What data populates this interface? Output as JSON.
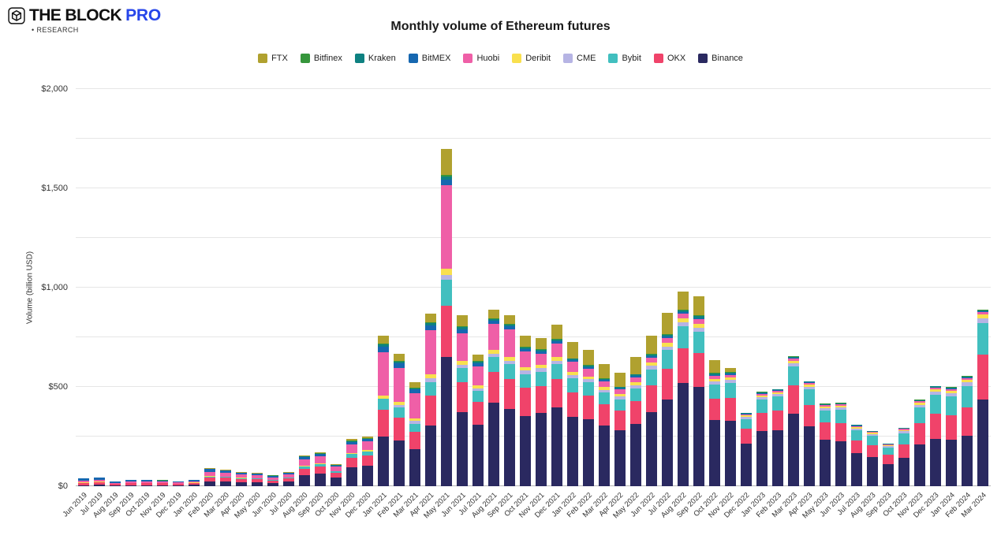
{
  "brand": {
    "name": "THE BLOCK",
    "pro": "PRO",
    "sub": "• RESEARCH"
  },
  "chart_data": {
    "type": "bar",
    "stacked": true,
    "title": "Monthly volume of Ethereum futures",
    "ylabel": "Volume (billion USD)",
    "ylim": [
      0,
      2000
    ],
    "ytick_step": 250,
    "ytick_values": [
      0,
      500,
      1000,
      1500,
      2000
    ],
    "ytick_labels": [
      "$0",
      "$500",
      "$1,000",
      "$1,500",
      "$2,000"
    ],
    "grid": true,
    "legend_position": "top",
    "categories": [
      "Jun 2019",
      "Jul 2019",
      "Aug 2019",
      "Sep 2019",
      "Oct 2019",
      "Nov 2019",
      "Dec 2019",
      "Jan 2020",
      "Feb 2020",
      "Mar 2020",
      "Apr 2020",
      "May 2020",
      "Jun 2020",
      "Jul 2020",
      "Aug 2020",
      "Sep 2020",
      "Oct 2020",
      "Nov 2020",
      "Dec 2020",
      "Jan 2021",
      "Feb 2021",
      "Mar 2021",
      "Apr 2021",
      "May 2021",
      "Jun 2021",
      "Jul 2021",
      "Aug 2021",
      "Sep 2021",
      "Oct 2021",
      "Nov 2021",
      "Dec 2021",
      "Jan 2022",
      "Feb 2022",
      "Mar 2022",
      "Apr 2022",
      "May 2022",
      "Jun 2022",
      "Jul 2022",
      "Aug 2022",
      "Sep 2022",
      "Oct 2022",
      "Nov 2022",
      "Dec 2022",
      "Jan 2023",
      "Feb 2023",
      "Mar 2023",
      "Apr 2023",
      "May 2023",
      "Jun 2023",
      "Jul 2023",
      "Aug 2023",
      "Sep 2023",
      "Oct 2023",
      "Nov 2023",
      "Dec 2023",
      "Jan 2024",
      "Feb 2024",
      "Mar 2024"
    ],
    "stack_order_bottom_to_top": [
      "Binance",
      "OKX",
      "Bybit",
      "CME",
      "Deribit",
      "Huobi",
      "BitMEX",
      "Kraken",
      "Bitfinex",
      "FTX"
    ],
    "series": [
      {
        "name": "FTX",
        "color": "#b0a12f",
        "values": [
          0,
          0,
          0,
          0,
          0,
          0,
          0,
          0,
          2,
          2,
          2,
          2,
          2,
          2,
          5,
          5,
          4,
          8,
          9,
          42,
          32,
          28,
          45,
          132,
          55,
          35,
          45,
          45,
          57,
          56,
          72,
          80,
          75,
          70,
          68,
          85,
          95,
          110,
          90,
          95,
          65,
          20,
          0,
          0,
          0,
          0,
          0,
          0,
          0,
          0,
          0,
          0,
          0,
          0,
          0,
          0,
          0,
          0
        ]
      },
      {
        "name": "Bitfinex",
        "color": "#36963c",
        "values": [
          1,
          1,
          0,
          1,
          1,
          1,
          0,
          0,
          1,
          1,
          1,
          1,
          1,
          1,
          1,
          2,
          1,
          2,
          2,
          5,
          4,
          3,
          5,
          8,
          5,
          4,
          4,
          4,
          4,
          4,
          4,
          3,
          3,
          3,
          3,
          3,
          3,
          4,
          4,
          4,
          3,
          3,
          2,
          2,
          2,
          3,
          2,
          2,
          2,
          2,
          1,
          1,
          2,
          2,
          2,
          2,
          2,
          3
        ]
      },
      {
        "name": "Kraken",
        "color": "#0e8181",
        "values": [
          1,
          1,
          0,
          0,
          0,
          0,
          0,
          0,
          1,
          1,
          1,
          1,
          1,
          1,
          2,
          2,
          1,
          3,
          3,
          10,
          9,
          7,
          11,
          15,
          9,
          7,
          9,
          8,
          8,
          8,
          8,
          7,
          7,
          6,
          5,
          6,
          7,
          8,
          9,
          9,
          6,
          6,
          4,
          4,
          4,
          6,
          5,
          4,
          4,
          3,
          3,
          2,
          3,
          4,
          5,
          5,
          5,
          7
        ]
      },
      {
        "name": "BitMEX",
        "color": "#1667b0",
        "values": [
          11,
          11,
          6,
          6,
          6,
          5,
          5,
          5,
          14,
          11,
          9,
          8,
          7,
          7,
          12,
          11,
          6,
          12,
          11,
          30,
          25,
          18,
          25,
          30,
          20,
          14,
          16,
          14,
          12,
          11,
          11,
          9,
          8,
          7,
          6,
          7,
          7,
          7,
          8,
          7,
          5,
          5,
          3,
          3,
          3,
          4,
          3,
          2,
          2,
          2,
          2,
          1,
          2,
          2,
          3,
          3,
          3,
          4
        ]
      },
      {
        "name": "Huobi",
        "color": "#ef5fa7",
        "values": [
          9,
          10,
          6,
          7,
          7,
          7,
          6,
          7,
          21,
          18,
          15,
          14,
          12,
          15,
          34,
          37,
          22,
          45,
          45,
          215,
          169,
          126,
          220,
          420,
          140,
          97,
          130,
          140,
          80,
          55,
          70,
          50,
          40,
          30,
          25,
          25,
          25,
          25,
          25,
          22,
          15,
          12,
          5,
          8,
          8,
          10,
          8,
          6,
          6,
          5,
          5,
          4,
          5,
          7,
          8,
          8,
          9,
          12
        ]
      },
      {
        "name": "Deribit",
        "color": "#f9e04e",
        "values": [
          1,
          1,
          0,
          1,
          1,
          1,
          1,
          1,
          2,
          2,
          2,
          2,
          1,
          2,
          4,
          4,
          3,
          6,
          6,
          18,
          16,
          13,
          20,
          30,
          18,
          14,
          18,
          17,
          16,
          16,
          17,
          15,
          14,
          13,
          12,
          14,
          16,
          17,
          19,
          19,
          13,
          13,
          8,
          10,
          10,
          14,
          11,
          9,
          9,
          7,
          6,
          5,
          7,
          10,
          12,
          12,
          13,
          18
        ]
      },
      {
        "name": "CME",
        "color": "#b6b4e4",
        "values": [
          0,
          0,
          0,
          0,
          0,
          0,
          0,
          0,
          0,
          0,
          0,
          0,
          0,
          0,
          0,
          0,
          0,
          0,
          0,
          0,
          15,
          15,
          20,
          25,
          18,
          14,
          18,
          18,
          18,
          20,
          18,
          18,
          16,
          15,
          13,
          16,
          18,
          18,
          20,
          22,
          16,
          16,
          10,
          12,
          12,
          16,
          13,
          10,
          11,
          9,
          8,
          7,
          9,
          13,
          15,
          16,
          18,
          25
        ]
      },
      {
        "name": "Bybit",
        "color": "#41bfbf",
        "values": [
          1,
          2,
          1,
          2,
          2,
          2,
          2,
          2,
          5,
          5,
          4,
          4,
          3,
          4,
          10,
          12,
          8,
          18,
          20,
          55,
          50,
          40,
          70,
          130,
          70,
          55,
          75,
          75,
          70,
          70,
          75,
          70,
          65,
          60,
          55,
          65,
          80,
          95,
          110,
          105,
          70,
          75,
          50,
          65,
          68,
          95,
          78,
          62,
          68,
          50,
          48,
          38,
          55,
          80,
          95,
          98,
          110,
          160
        ]
      },
      {
        "name": "OKX",
        "color": "#f0436a",
        "values": [
          10,
          11,
          6,
          8,
          8,
          8,
          6,
          8,
          22,
          20,
          17,
          16,
          13,
          17,
          33,
          36,
          24,
          48,
          50,
          135,
          115,
          90,
          150,
          260,
          150,
          115,
          155,
          150,
          140,
          135,
          145,
          125,
          120,
          105,
          100,
          115,
          135,
          155,
          175,
          170,
          110,
          115,
          75,
          95,
          100,
          140,
          110,
          85,
          90,
          65,
          60,
          45,
          70,
          105,
          125,
          120,
          140,
          225
        ]
      },
      {
        "name": "Binance",
        "color": "#2a2960",
        "values": [
          6,
          8,
          5,
          6,
          6,
          6,
          5,
          7,
          22,
          22,
          20,
          18,
          16,
          22,
          55,
          62,
          42,
          95,
          105,
          250,
          230,
          185,
          305,
          650,
          375,
          310,
          420,
          390,
          355,
          370,
          395,
          348,
          337,
          306,
          283,
          314,
          374,
          436,
          520,
          502,
          332,
          330,
          213,
          276,
          283,
          367,
          300,
          235,
          228,
          167,
          147,
          112,
          142,
          212,
          240,
          236,
          255,
          436
        ]
      }
    ]
  }
}
